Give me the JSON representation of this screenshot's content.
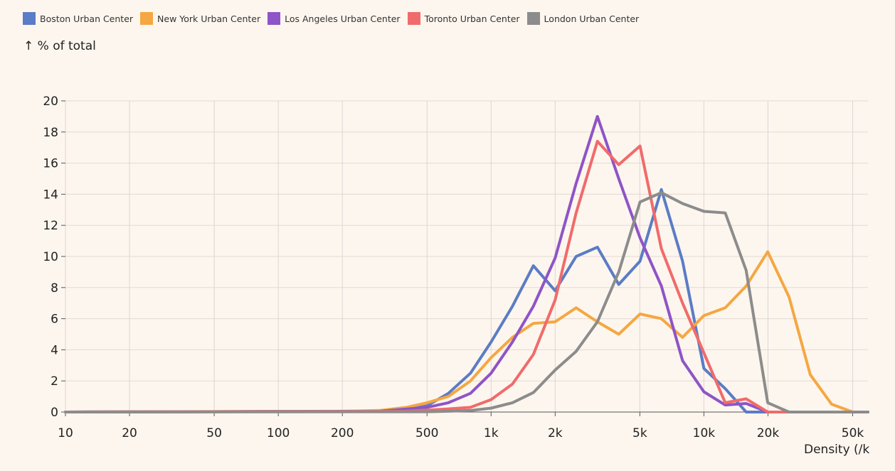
{
  "chart_data": {
    "type": "line",
    "title": "",
    "xlabel": "Density (/k",
    "ylabel": "↑ % of total",
    "xscale": "log",
    "xlim": [
      10,
      60000
    ],
    "ylim": [
      0,
      20
    ],
    "x_ticks": [
      10,
      20,
      50,
      100,
      200,
      500,
      1000,
      2000,
      5000,
      10000,
      20000,
      50000
    ],
    "x_tick_labels": [
      "10",
      "20",
      "50",
      "100",
      "200",
      "500",
      "1k",
      "2k",
      "5k",
      "10k",
      "20k",
      "50k"
    ],
    "y_ticks": [
      0,
      2,
      4,
      6,
      8,
      10,
      12,
      14,
      16,
      18,
      20
    ],
    "y_tick_labels": [
      "0",
      "2",
      "4",
      "6",
      "8",
      "10",
      "12",
      "14",
      "16",
      "18",
      "20"
    ],
    "grid": true,
    "legend_position": "top-left",
    "series": [
      {
        "name": "Boston Urban Center",
        "color": "#5b7cc6",
        "x": [
          10,
          250,
          400,
          500,
          630,
          800,
          1000,
          1260,
          1580,
          2000,
          2510,
          3160,
          3980,
          5010,
          6310,
          7940,
          10000,
          12600,
          15800,
          19950,
          60000
        ],
        "y": [
          0,
          0.05,
          0.15,
          0.4,
          1.2,
          2.5,
          4.5,
          6.8,
          9.4,
          7.8,
          10.0,
          10.6,
          8.2,
          9.7,
          14.3,
          9.7,
          2.8,
          1.5,
          0,
          0,
          0
        ]
      },
      {
        "name": "New York Urban Center",
        "color": "#f5a742",
        "x": [
          10,
          200,
          300,
          400,
          500,
          630,
          800,
          1000,
          1260,
          1580,
          2000,
          2510,
          3160,
          3980,
          5010,
          6310,
          7940,
          10000,
          12600,
          15800,
          19950,
          25100,
          31600,
          39800,
          50100,
          60000
        ],
        "y": [
          0,
          0.05,
          0.1,
          0.3,
          0.6,
          1.0,
          2.0,
          3.5,
          4.8,
          5.7,
          5.8,
          6.7,
          5.8,
          5.0,
          6.3,
          6.0,
          4.8,
          6.2,
          6.7,
          8.1,
          10.3,
          7.4,
          2.4,
          0.5,
          0,
          0
        ]
      },
      {
        "name": "Los Angeles Urban Center",
        "color": "#8f54c7",
        "x": [
          10,
          300,
          500,
          630,
          800,
          1000,
          1260,
          1580,
          2000,
          2510,
          3160,
          3980,
          5010,
          6310,
          7940,
          10000,
          12600,
          15800,
          19950,
          60000
        ],
        "y": [
          0,
          0.05,
          0.3,
          0.6,
          1.2,
          2.5,
          4.5,
          6.8,
          9.9,
          14.7,
          19.0,
          15.0,
          11.2,
          8.1,
          3.3,
          1.3,
          0.45,
          0.55,
          0,
          0
        ]
      },
      {
        "name": "Toronto Urban Center",
        "color": "#f06b6b",
        "x": [
          10,
          400,
          630,
          800,
          1000,
          1260,
          1580,
          2000,
          2510,
          3160,
          3980,
          5010,
          6310,
          7940,
          10000,
          12600,
          15800,
          19950,
          25100,
          60000
        ],
        "y": [
          0,
          0.05,
          0.2,
          0.3,
          0.8,
          1.8,
          3.7,
          7.2,
          12.8,
          17.4,
          15.9,
          17.1,
          10.5,
          7.0,
          3.8,
          0.6,
          0.85,
          0,
          0,
          0
        ]
      },
      {
        "name": "London Urban Center",
        "color": "#8c8c8c",
        "x": [
          10,
          500,
          630,
          800,
          1000,
          1260,
          1580,
          2000,
          2510,
          3160,
          3980,
          5010,
          6310,
          7940,
          10000,
          12600,
          15800,
          19950,
          25100,
          60000
        ],
        "y": [
          0,
          0.02,
          0.05,
          0.1,
          0.25,
          0.6,
          1.25,
          2.7,
          3.9,
          5.8,
          9.0,
          13.5,
          14.1,
          13.4,
          12.9,
          12.8,
          9.1,
          0.6,
          0,
          0
        ]
      }
    ]
  }
}
